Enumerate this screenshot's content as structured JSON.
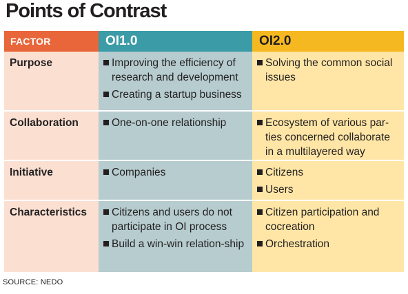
{
  "title": "Points of Contrast",
  "headers": {
    "factor": "FACTOR",
    "oi1": "OI1.0",
    "oi2": "OI2.0"
  },
  "rows": [
    {
      "factor": "Purpose",
      "oi1": [
        "Improving the efficiency of research and development",
        "Creating a startup business"
      ],
      "oi2": [
        "Solving the common social issues"
      ]
    },
    {
      "factor": "Collaboration",
      "oi1": [
        "One-on-one relationship"
      ],
      "oi2": [
        "Ecosystem of various par-ties concerned collaborate in a multilayered way"
      ]
    },
    {
      "factor": "Initiative",
      "oi1": [
        "Companies"
      ],
      "oi2": [
        "Citizens",
        "Users"
      ]
    },
    {
      "factor": "Characteristics",
      "oi1": [
        "Citizens and users do not participate in OI process",
        "Build a win-win relation-ship"
      ],
      "oi2": [
        "Citizen participation and cocreation",
        "Orchestration"
      ]
    }
  ],
  "source": "SOURCE: NEDO",
  "colors": {
    "factor_header": "#e8663a",
    "oi1_header": "#3b9ba6",
    "oi2_header": "#f6b820",
    "factor_col": "#fbe0d2",
    "oi1_col": "#b6cccf",
    "oi2_col": "#ffe6a6"
  }
}
